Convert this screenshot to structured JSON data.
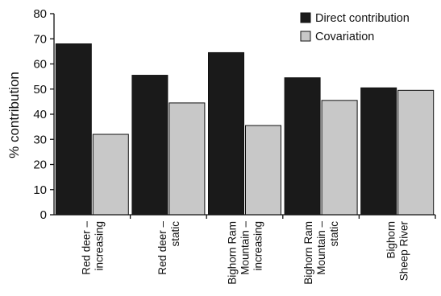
{
  "chart_data": {
    "type": "bar",
    "title": "",
    "xlabel": "",
    "ylabel": "% contribution",
    "ylim": [
      0,
      80
    ],
    "yticks": [
      0,
      10,
      20,
      30,
      40,
      50,
      60,
      70,
      80
    ],
    "grid": false,
    "legend_position": "top-right",
    "categories": [
      [
        "Red deer –",
        "increasing"
      ],
      [
        "Red deer –",
        "static"
      ],
      [
        "Bighorn Ram",
        "Mountain –",
        "increasing"
      ],
      [
        "Bighorn Ram",
        "Mountain –",
        "static"
      ],
      [
        "Bighorn",
        "Sheep River"
      ]
    ],
    "series": [
      {
        "name": "Direct contribution",
        "color": "#1a1a1a",
        "values": [
          68,
          55.5,
          64.5,
          54.5,
          50.5
        ]
      },
      {
        "name": "Covariation",
        "color": "#c8c8c8",
        "values": [
          32,
          44.5,
          35.5,
          45.5,
          49.5
        ]
      }
    ]
  }
}
